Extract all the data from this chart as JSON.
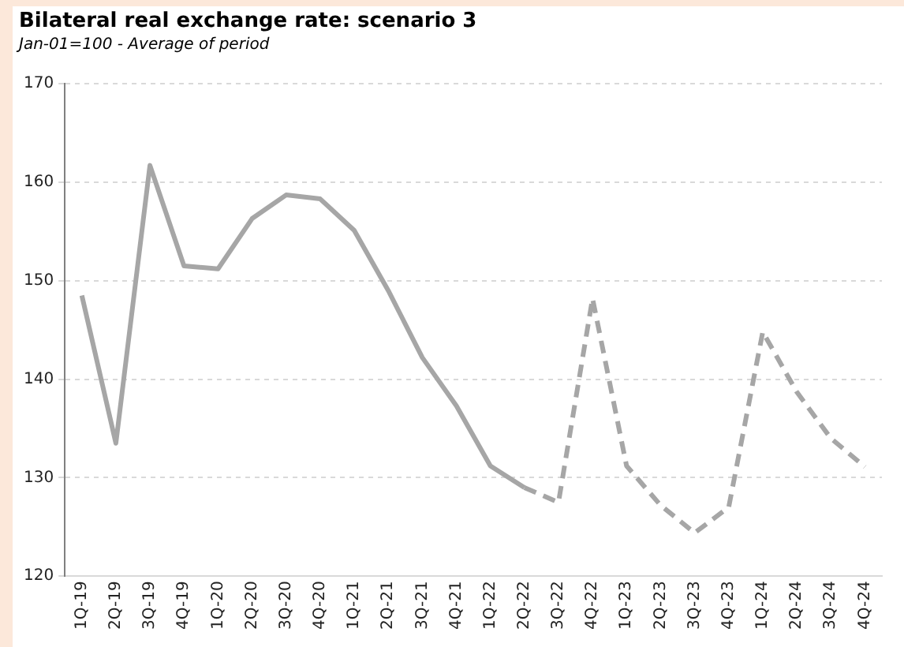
{
  "chart_data": {
    "type": "line",
    "title": "Bilateral real exchange rate: scenario 3",
    "subtitle": "Jan-01=100 - Average of period",
    "categories": [
      "1Q-19",
      "2Q-19",
      "3Q-19",
      "4Q-19",
      "1Q-20",
      "2Q-20",
      "3Q-20",
      "4Q-20",
      "1Q-21",
      "2Q-21",
      "3Q-21",
      "4Q-21",
      "1Q-22",
      "2Q-22",
      "3Q-22",
      "4Q-22",
      "1Q-23",
      "2Q-23",
      "3Q-23",
      "4Q-23",
      "1Q-24",
      "2Q-24",
      "3Q-24",
      "4Q-24"
    ],
    "series": [
      {
        "color": "#a6a6a6",
        "line_style": "solid",
        "values": [
          148.5,
          133.5,
          161.7,
          151.5,
          151.2,
          156.3,
          158.7,
          158.3,
          155.1,
          149.0,
          142.2,
          137.3,
          131.2,
          129.0,
          null,
          null,
          null,
          null,
          null,
          null,
          null,
          null,
          null,
          null
        ]
      },
      {
        "color": "#a6a6a6",
        "line_style": "dashed",
        "values": [
          null,
          null,
          null,
          null,
          null,
          null,
          null,
          null,
          null,
          null,
          null,
          null,
          null,
          129.0,
          127.5,
          148.2,
          131.2,
          127.2,
          124.4,
          127.0,
          144.8,
          138.7,
          134.0,
          131.1
        ]
      }
    ],
    "ylim": [
      120,
      170
    ],
    "yticks": [
      120,
      130,
      140,
      150,
      160,
      170
    ],
    "grid": "y",
    "legend": false,
    "marker": "none"
  }
}
